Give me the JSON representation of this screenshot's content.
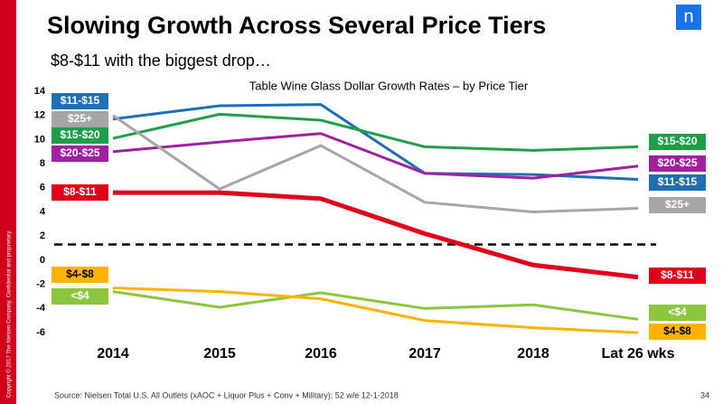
{
  "title": "Slowing Growth Across Several Price Tiers",
  "subtitle": "$8-$11 with the biggest drop…",
  "copyright": "Copyright © 2017 The Nielsen Company. Confidential and proprietary.",
  "logo": "n",
  "source": "Source:  Nielsen Total U.S. All Outlets (xAOC + Liquor Plus + Conv + Military); 52 w/e  12-1-2018",
  "page_number": "34",
  "chart_data": {
    "type": "line",
    "title": "Table Wine Glass Dollar Growth Rates – by Price Tier",
    "categories": [
      "2014",
      "2015",
      "2016",
      "2017",
      "2018",
      "Lat 26 wks"
    ],
    "ylim": [
      -6,
      14
    ],
    "yticks": [
      -6,
      -4,
      -2,
      0,
      2,
      4,
      6,
      8,
      10,
      12,
      14
    ],
    "reference_line": 1.3,
    "series": [
      {
        "name": "$11-$15",
        "color": "#1f6fb5",
        "values": [
          11.7,
          12.8,
          12.9,
          7.2,
          7.1,
          6.7
        ]
      },
      {
        "name": "$15-$20",
        "color": "#1f9e4a",
        "values": [
          10.1,
          12.1,
          11.6,
          9.4,
          9.1,
          9.4
        ]
      },
      {
        "name": "$20-$25",
        "color": "#a020a0",
        "values": [
          9.0,
          9.8,
          10.5,
          7.2,
          6.8,
          7.8
        ]
      },
      {
        "name": "$25+",
        "color": "#a6a6a6",
        "values": [
          12.0,
          5.9,
          9.5,
          4.8,
          4.0,
          4.3
        ]
      },
      {
        "name": "$8-$11",
        "color": "#e0001b",
        "values": [
          5.6,
          5.6,
          5.1,
          2.2,
          -0.4,
          -1.4
        ]
      },
      {
        "name": "<$4",
        "color": "#8cc63f",
        "values": [
          -2.6,
          -3.9,
          -2.7,
          -4.0,
          -3.7,
          -4.9
        ]
      },
      {
        "name": "$4-$8",
        "color": "#ffb300",
        "values": [
          -2.3,
          -2.6,
          -3.2,
          -5.0,
          -5.6,
          -6.0
        ]
      }
    ]
  }
}
